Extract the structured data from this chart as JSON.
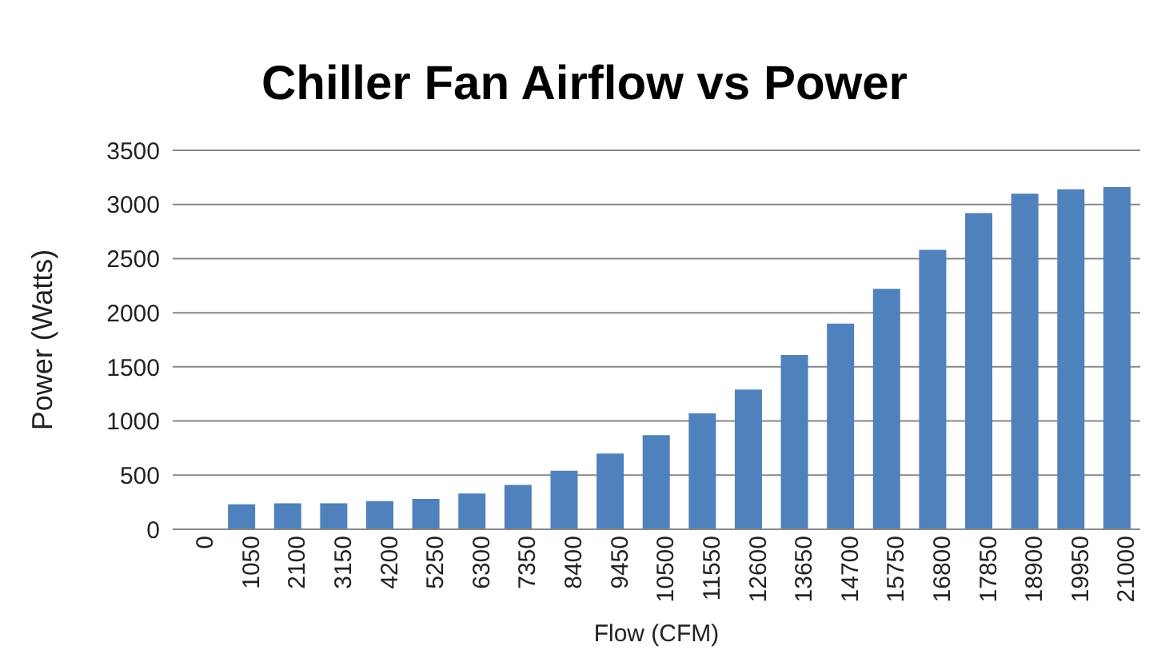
{
  "chart_data": {
    "type": "bar",
    "title": "Chiller Fan Airflow vs Power",
    "xlabel": "Flow (CFM)",
    "ylabel": "Power (Watts)",
    "categories": [
      "0",
      "1050",
      "2100",
      "3150",
      "4200",
      "5250",
      "6300",
      "7350",
      "8400",
      "9450",
      "10500",
      "11550",
      "12600",
      "13650",
      "14700",
      "15750",
      "16800",
      "17850",
      "18900",
      "19950",
      "21000"
    ],
    "values": [
      0,
      230,
      240,
      240,
      260,
      280,
      330,
      410,
      540,
      700,
      870,
      1070,
      1290,
      1610,
      1900,
      2220,
      2580,
      2920,
      3100,
      3140,
      3160
    ],
    "color": "#4f81bd",
    "ylim": [
      0,
      3500
    ],
    "yticks": [
      0,
      500,
      1000,
      1500,
      2000,
      2500,
      3000,
      3500
    ],
    "grid": "y"
  }
}
